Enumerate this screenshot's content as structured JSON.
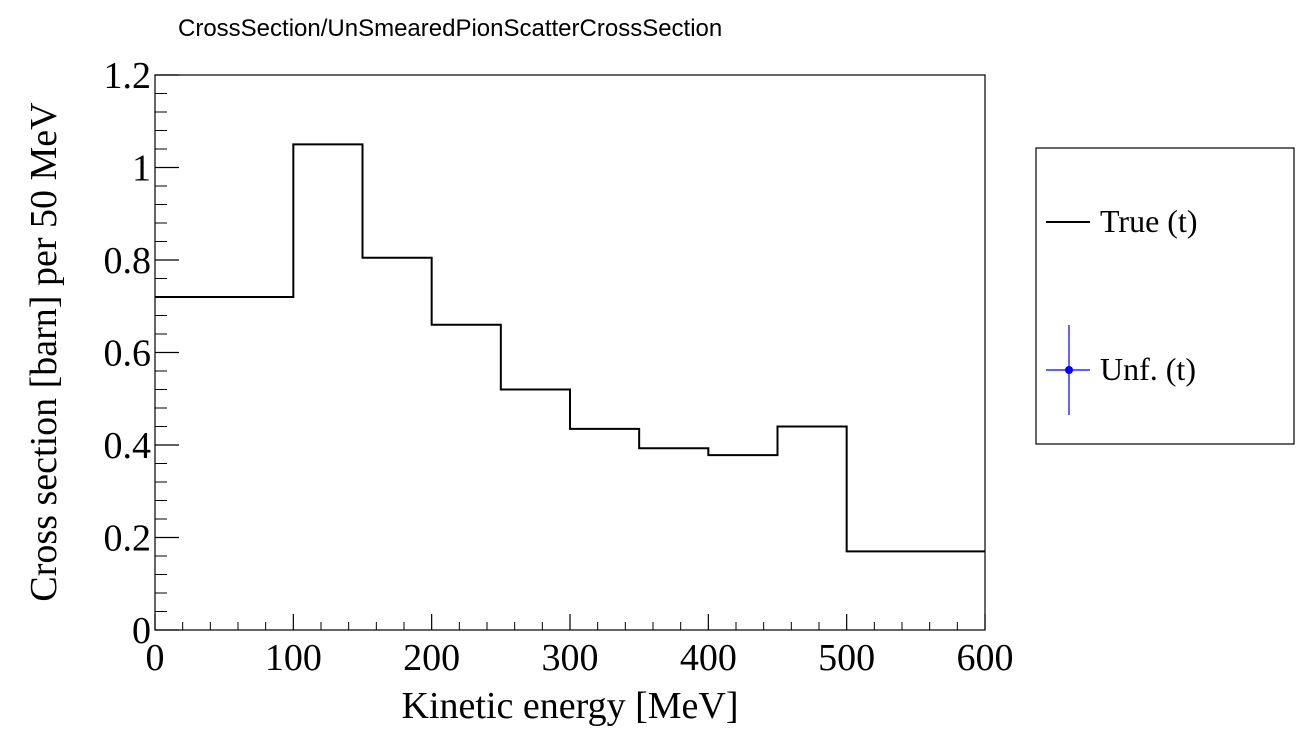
{
  "title": "CrossSection/UnSmearedPionScatterCrossSection",
  "chart_data": {
    "type": "step",
    "title": "CrossSection/UnSmearedPionScatterCrossSection",
    "xlabel": "Kinetic energy [MeV]",
    "ylabel": "Cross section [barn] per 50 MeV",
    "xlim": [
      0,
      600
    ],
    "ylim": [
      0,
      1.2
    ],
    "x_ticks": [
      0,
      100,
      200,
      300,
      400,
      500,
      600
    ],
    "x_tick_labels": [
      "0",
      "100",
      "200",
      "300",
      "400",
      "500",
      "600"
    ],
    "y_ticks": [
      0,
      0.2,
      0.4,
      0.6,
      0.8,
      1.0,
      1.2
    ],
    "y_tick_labels": [
      "0",
      "0.2",
      "0.4",
      "0.6",
      "0.8",
      "1",
      "1.2"
    ],
    "grid": false,
    "legend_position": "right",
    "series": [
      {
        "name": "True (t)",
        "color": "#000000",
        "style": "step",
        "bins": [
          {
            "x_low": 0,
            "x_high": 100,
            "y": 0.72
          },
          {
            "x_low": 100,
            "x_high": 150,
            "y": 1.05
          },
          {
            "x_low": 150,
            "x_high": 200,
            "y": 0.805
          },
          {
            "x_low": 200,
            "x_high": 250,
            "y": 0.66
          },
          {
            "x_low": 250,
            "x_high": 300,
            "y": 0.52
          },
          {
            "x_low": 300,
            "x_high": 350,
            "y": 0.435
          },
          {
            "x_low": 350,
            "x_high": 400,
            "y": 0.393
          },
          {
            "x_low": 400,
            "x_high": 450,
            "y": 0.378
          },
          {
            "x_low": 450,
            "x_high": 500,
            "y": 0.44
          },
          {
            "x_low": 500,
            "x_high": 600,
            "y": 0.17
          }
        ]
      },
      {
        "name": "Unf. (t)",
        "color": "#0000ff",
        "style": "marker",
        "bins": []
      }
    ]
  }
}
